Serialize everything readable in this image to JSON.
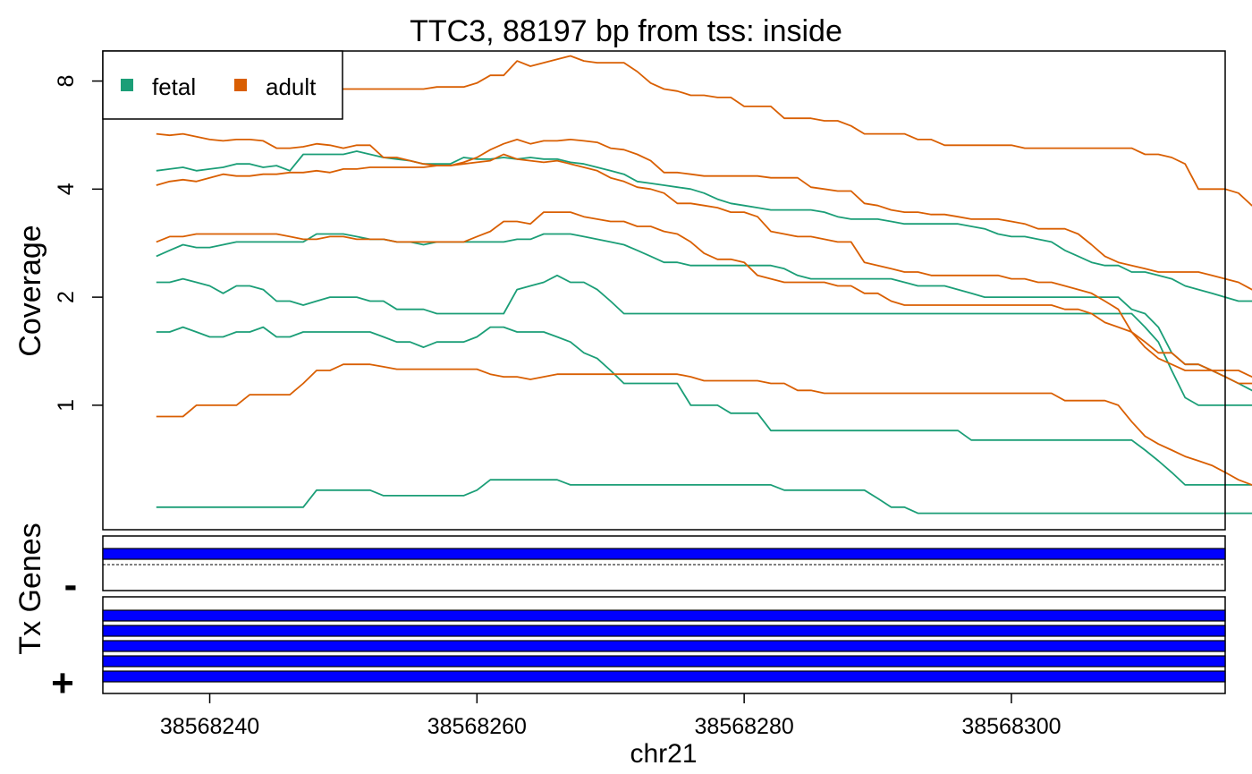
{
  "chart_data": {
    "type": "line",
    "title": "TTC3, 88197 bp from tss: inside",
    "xlabel": "chr21",
    "ylabel": "Coverage",
    "y_scale": "log2",
    "xlim": [
      38568232,
      38568316
    ],
    "ylim": [
      0.45,
      9.7
    ],
    "x_ticks": [
      38568240,
      38568260,
      38568280,
      38568300
    ],
    "y_ticks": [
      1,
      2,
      4,
      8
    ],
    "x_start": 38568236,
    "x_step": 1,
    "legend": {
      "placement": "top-left",
      "entries": [
        {
          "label": "fetal",
          "color": "#1b9e77"
        },
        {
          "label": "adult",
          "color": "#d95f02"
        }
      ]
    },
    "series": [
      {
        "group": "fetal",
        "color": "#1b9e77",
        "values": [
          2.2,
          2.2,
          2.25,
          2.2,
          2.15,
          2.05,
          2.15,
          2.15,
          2.1,
          1.95,
          1.95,
          1.9,
          1.95,
          2.0,
          2.0,
          2.0,
          1.95,
          1.95,
          1.85,
          1.85,
          1.85,
          1.8,
          1.8,
          1.8,
          1.8,
          1.8,
          1.8,
          2.1,
          2.15,
          2.2,
          2.3,
          2.2,
          2.2,
          2.1,
          1.95,
          1.8,
          1.8,
          1.8,
          1.8,
          1.8,
          1.8,
          1.8,
          1.8,
          1.8,
          1.8,
          1.8,
          1.8,
          1.8,
          1.8,
          1.8,
          1.8,
          1.8,
          1.8,
          1.8,
          1.8,
          1.8,
          1.8,
          1.8,
          1.8,
          1.8,
          1.8,
          1.8,
          1.8,
          1.8,
          1.8,
          1.8,
          1.8,
          1.8,
          1.8,
          1.8,
          1.8,
          1.8,
          1.8,
          1.8,
          1.65,
          1.5,
          1.25,
          1.05,
          1.0,
          1.0,
          1.0,
          1.0,
          1.0,
          1.0,
          1.0
        ]
      },
      {
        "group": "fetal",
        "color": "#1b9e77",
        "values": [
          1.6,
          1.6,
          1.65,
          1.6,
          1.55,
          1.55,
          1.6,
          1.6,
          1.65,
          1.55,
          1.55,
          1.6,
          1.6,
          1.6,
          1.6,
          1.6,
          1.6,
          1.55,
          1.5,
          1.5,
          1.45,
          1.5,
          1.5,
          1.5,
          1.55,
          1.65,
          1.65,
          1.6,
          1.6,
          1.6,
          1.55,
          1.5,
          1.4,
          1.35,
          1.25,
          1.15,
          1.15,
          1.15,
          1.15,
          1.15,
          1.0,
          1.0,
          1.0,
          0.95,
          0.95,
          0.95,
          0.85,
          0.85,
          0.85,
          0.85,
          0.85,
          0.85,
          0.85,
          0.85,
          0.85,
          0.85,
          0.85,
          0.85,
          0.85,
          0.85,
          0.85,
          0.8,
          0.8,
          0.8,
          0.8,
          0.8,
          0.8,
          0.8,
          0.8,
          0.8,
          0.8,
          0.8,
          0.8,
          0.8,
          0.75,
          0.7,
          0.65,
          0.6,
          0.6,
          0.6,
          0.6,
          0.6,
          0.6,
          0.6,
          0.6
        ]
      },
      {
        "group": "fetal",
        "color": "#1b9e77",
        "values": [
          4.5,
          4.55,
          4.6,
          4.5,
          4.55,
          4.6,
          4.7,
          4.7,
          4.6,
          4.65,
          4.5,
          5.0,
          5.0,
          5.0,
          5.0,
          5.1,
          5.0,
          4.9,
          4.85,
          4.8,
          4.7,
          4.7,
          4.7,
          4.9,
          4.85,
          4.85,
          4.9,
          4.85,
          4.9,
          4.85,
          4.85,
          4.75,
          4.7,
          4.6,
          4.5,
          4.4,
          4.2,
          4.15,
          4.1,
          4.05,
          4.0,
          3.9,
          3.75,
          3.65,
          3.6,
          3.55,
          3.5,
          3.5,
          3.5,
          3.5,
          3.45,
          3.35,
          3.3,
          3.3,
          3.3,
          3.25,
          3.2,
          3.2,
          3.2,
          3.2,
          3.2,
          3.15,
          3.1,
          3.0,
          2.95,
          2.95,
          2.9,
          2.85,
          2.7,
          2.6,
          2.5,
          2.45,
          2.45,
          2.35,
          2.35,
          2.3,
          2.25,
          2.15,
          2.1,
          2.05,
          2.0,
          1.95,
          1.95,
          1.9,
          1.85
        ]
      },
      {
        "group": "fetal",
        "color": "#1b9e77",
        "values": [
          2.6,
          2.7,
          2.8,
          2.75,
          2.75,
          2.8,
          2.85,
          2.85,
          2.85,
          2.85,
          2.85,
          2.85,
          3.0,
          3.0,
          3.0,
          2.95,
          2.9,
          2.9,
          2.85,
          2.85,
          2.8,
          2.85,
          2.85,
          2.85,
          2.85,
          2.85,
          2.85,
          2.9,
          2.9,
          3.0,
          3.0,
          3.0,
          2.95,
          2.9,
          2.85,
          2.8,
          2.7,
          2.6,
          2.5,
          2.5,
          2.45,
          2.45,
          2.45,
          2.45,
          2.45,
          2.45,
          2.45,
          2.4,
          2.3,
          2.25,
          2.25,
          2.25,
          2.25,
          2.25,
          2.25,
          2.25,
          2.2,
          2.15,
          2.15,
          2.15,
          2.1,
          2.05,
          2.0,
          2.0,
          2.0,
          2.0,
          2.0,
          2.0,
          2.0,
          2.0,
          2.0,
          2.0,
          2.0,
          1.85,
          1.8,
          1.65,
          1.4,
          1.3,
          1.3,
          1.25,
          1.2,
          1.15,
          1.1,
          1.05,
          0.95
        ]
      },
      {
        "group": "fetal",
        "color": "#1b9e77",
        "values": [
          0.52,
          0.52,
          0.52,
          0.52,
          0.52,
          0.52,
          0.52,
          0.52,
          0.52,
          0.52,
          0.52,
          0.52,
          0.58,
          0.58,
          0.58,
          0.58,
          0.58,
          0.56,
          0.56,
          0.56,
          0.56,
          0.56,
          0.56,
          0.56,
          0.58,
          0.62,
          0.62,
          0.62,
          0.62,
          0.62,
          0.62,
          0.6,
          0.6,
          0.6,
          0.6,
          0.6,
          0.6,
          0.6,
          0.6,
          0.6,
          0.6,
          0.6,
          0.6,
          0.6,
          0.6,
          0.6,
          0.6,
          0.58,
          0.58,
          0.58,
          0.58,
          0.58,
          0.58,
          0.58,
          0.55,
          0.52,
          0.52,
          0.5,
          0.5,
          0.5,
          0.5,
          0.5,
          0.5,
          0.5,
          0.5,
          0.5,
          0.5,
          0.5,
          0.5,
          0.5,
          0.5,
          0.5,
          0.5,
          0.5,
          0.5,
          0.5,
          0.5,
          0.5,
          0.5,
          0.5,
          0.5,
          0.5,
          0.5,
          0.5,
          0.5
        ]
      },
      {
        "group": "adult",
        "color": "#d95f02",
        "values": [
          7.0,
          7.3,
          7.5,
          7.6,
          7.6,
          7.6,
          7.6,
          7.7,
          7.7,
          7.8,
          7.7,
          7.7,
          7.6,
          7.6,
          7.6,
          7.6,
          7.6,
          7.6,
          7.6,
          7.6,
          7.6,
          7.7,
          7.7,
          7.7,
          7.9,
          8.3,
          8.3,
          9.1,
          8.8,
          9.0,
          9.2,
          9.4,
          9.1,
          9.0,
          9.0,
          9.0,
          8.5,
          7.9,
          7.6,
          7.5,
          7.3,
          7.3,
          7.2,
          7.2,
          6.8,
          6.8,
          6.8,
          6.3,
          6.3,
          6.3,
          6.2,
          6.2,
          6.0,
          5.7,
          5.7,
          5.7,
          5.7,
          5.5,
          5.5,
          5.3,
          5.3,
          5.3,
          5.3,
          5.3,
          5.3,
          5.2,
          5.2,
          5.2,
          5.2,
          5.2,
          5.2,
          5.2,
          5.2,
          5.2,
          5.0,
          5.0,
          4.9,
          4.7,
          4.0,
          4.0,
          4.0,
          3.9,
          3.6,
          3.6,
          3.6
        ]
      },
      {
        "group": "adult",
        "color": "#d95f02",
        "values": [
          5.7,
          5.65,
          5.7,
          5.6,
          5.5,
          5.45,
          5.5,
          5.5,
          5.45,
          5.2,
          5.2,
          5.25,
          5.35,
          5.3,
          5.2,
          5.3,
          5.3,
          4.9,
          4.9,
          4.8,
          4.7,
          4.65,
          4.65,
          4.75,
          4.9,
          5.15,
          5.35,
          5.5,
          5.35,
          5.45,
          5.45,
          5.5,
          5.45,
          5.4,
          5.2,
          5.15,
          5.0,
          4.8,
          4.45,
          4.45,
          4.4,
          4.35,
          4.35,
          4.35,
          4.35,
          4.35,
          4.3,
          4.3,
          4.3,
          4.05,
          4.0,
          3.95,
          3.95,
          3.65,
          3.6,
          3.5,
          3.45,
          3.45,
          3.4,
          3.4,
          3.35,
          3.3,
          3.3,
          3.3,
          3.25,
          3.2,
          3.1,
          3.1,
          3.1,
          3.0,
          2.8,
          2.6,
          2.5,
          2.45,
          2.4,
          2.35,
          2.35,
          2.35,
          2.35,
          2.3,
          2.25,
          2.2,
          2.1,
          2.05,
          2.0
        ]
      },
      {
        "group": "adult",
        "color": "#d95f02",
        "values": [
          4.1,
          4.2,
          4.25,
          4.2,
          4.3,
          4.4,
          4.35,
          4.35,
          4.4,
          4.4,
          4.45,
          4.45,
          4.5,
          4.45,
          4.55,
          4.55,
          4.6,
          4.6,
          4.6,
          4.6,
          4.6,
          4.65,
          4.65,
          4.7,
          4.75,
          4.8,
          5.0,
          4.85,
          4.8,
          4.75,
          4.8,
          4.7,
          4.6,
          4.5,
          4.3,
          4.2,
          4.05,
          4.0,
          3.9,
          3.65,
          3.65,
          3.6,
          3.55,
          3.45,
          3.45,
          3.35,
          3.05,
          3.0,
          2.95,
          2.95,
          2.9,
          2.85,
          2.85,
          2.5,
          2.45,
          2.4,
          2.35,
          2.35,
          2.3,
          2.3,
          2.3,
          2.3,
          2.3,
          2.3,
          2.25,
          2.25,
          2.2,
          2.2,
          2.15,
          2.1,
          2.05,
          1.95,
          1.85,
          1.6,
          1.5,
          1.4,
          1.4,
          1.3,
          1.3,
          1.25,
          1.25,
          1.25,
          1.2,
          1.15,
          1.1
        ]
      },
      {
        "group": "adult",
        "color": "#d95f02",
        "values": [
          2.85,
          2.95,
          2.95,
          3.0,
          3.0,
          3.0,
          3.0,
          3.0,
          3.0,
          3.0,
          2.95,
          2.9,
          2.9,
          2.95,
          2.95,
          2.9,
          2.9,
          2.9,
          2.85,
          2.85,
          2.85,
          2.85,
          2.85,
          2.85,
          2.95,
          3.05,
          3.25,
          3.25,
          3.2,
          3.45,
          3.45,
          3.45,
          3.35,
          3.3,
          3.25,
          3.25,
          3.15,
          3.15,
          3.05,
          3.0,
          2.85,
          2.65,
          2.55,
          2.55,
          2.5,
          2.3,
          2.25,
          2.2,
          2.2,
          2.2,
          2.2,
          2.15,
          2.15,
          2.05,
          2.05,
          1.95,
          1.9,
          1.9,
          1.9,
          1.9,
          1.9,
          1.9,
          1.9,
          1.9,
          1.9,
          1.9,
          1.9,
          1.9,
          1.85,
          1.85,
          1.8,
          1.7,
          1.65,
          1.6,
          1.45,
          1.35,
          1.3,
          1.25,
          1.25,
          1.25,
          1.2,
          1.15,
          1.15,
          1.1,
          1.05
        ]
      },
      {
        "group": "adult",
        "color": "#d95f02",
        "values": [
          0.93,
          0.93,
          0.93,
          1.0,
          1.0,
          1.0,
          1.0,
          1.07,
          1.07,
          1.07,
          1.07,
          1.15,
          1.25,
          1.25,
          1.3,
          1.3,
          1.3,
          1.28,
          1.26,
          1.26,
          1.26,
          1.26,
          1.26,
          1.26,
          1.26,
          1.22,
          1.2,
          1.2,
          1.18,
          1.2,
          1.22,
          1.22,
          1.22,
          1.22,
          1.22,
          1.22,
          1.22,
          1.22,
          1.22,
          1.22,
          1.2,
          1.17,
          1.17,
          1.17,
          1.17,
          1.17,
          1.15,
          1.15,
          1.1,
          1.1,
          1.08,
          1.08,
          1.08,
          1.08,
          1.08,
          1.08,
          1.08,
          1.08,
          1.08,
          1.08,
          1.08,
          1.08,
          1.08,
          1.08,
          1.08,
          1.08,
          1.08,
          1.08,
          1.03,
          1.03,
          1.03,
          1.03,
          1.0,
          0.9,
          0.82,
          0.78,
          0.75,
          0.72,
          0.7,
          0.68,
          0.65,
          0.62,
          0.6,
          0.58,
          0.55
        ]
      }
    ]
  },
  "tracks": {
    "axis_title": "Tx Genes",
    "minus_strand_label": "-",
    "plus_strand_label": "+",
    "exon_color": "#0000ff",
    "minus_exon_count": 1,
    "plus_exon_count": 5
  }
}
